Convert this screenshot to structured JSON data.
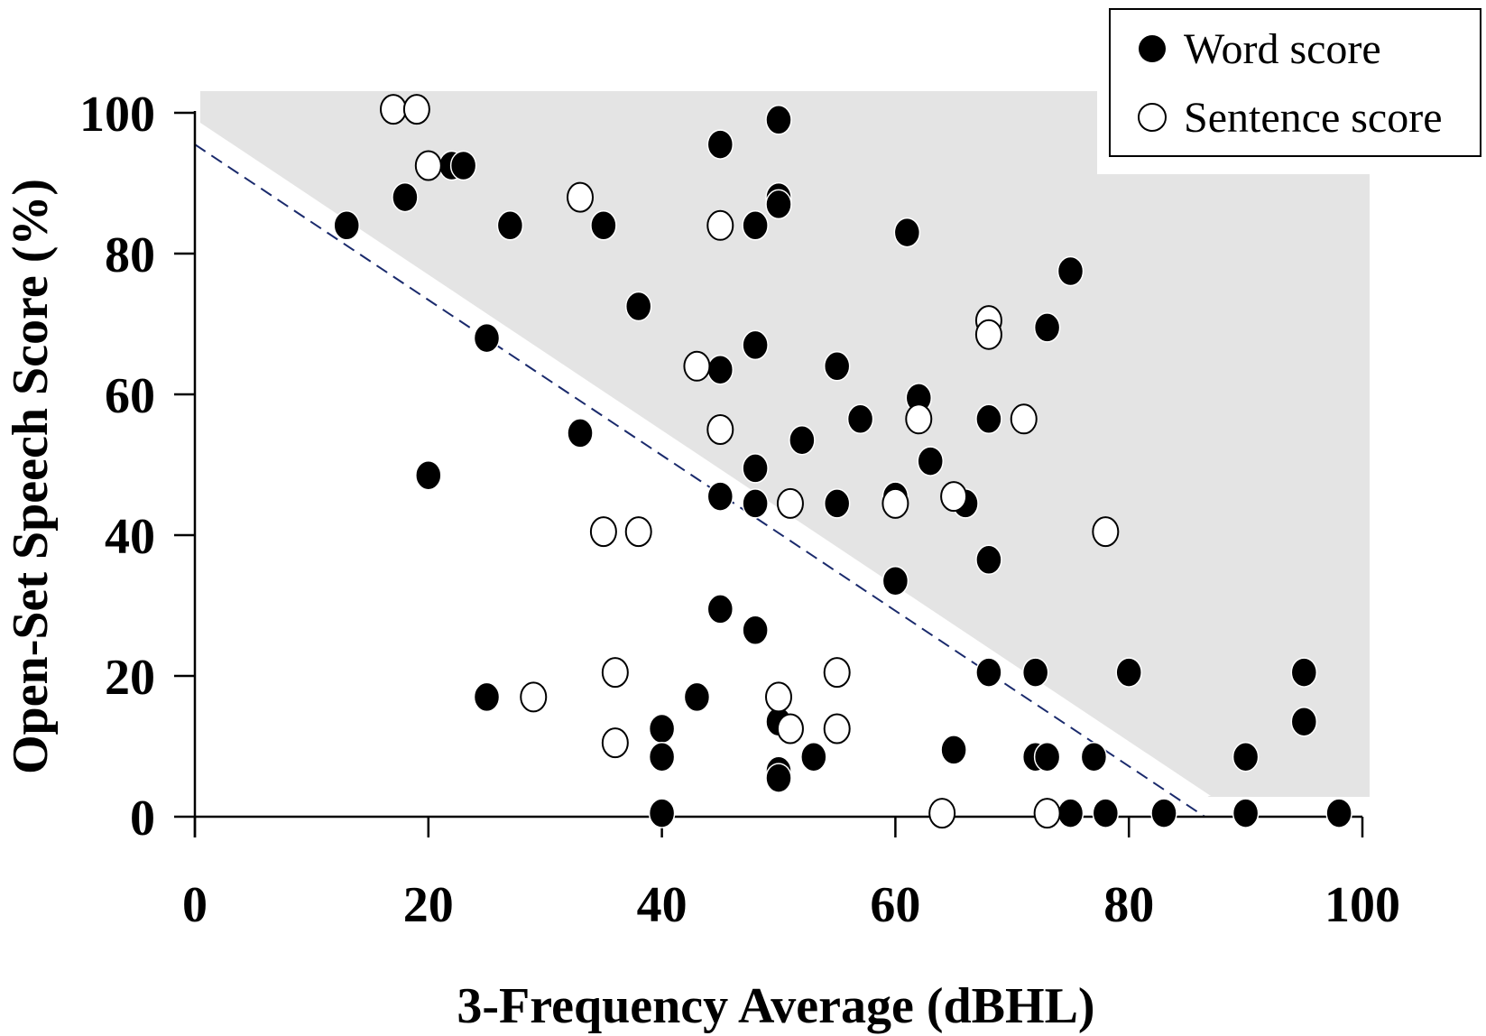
{
  "chart_data": {
    "type": "scatter",
    "title": "",
    "xlabel": "3-Frequency Average (dBHL)",
    "ylabel": "Open-Set Speech Score (%)",
    "xlim": [
      0,
      100
    ],
    "ylim": [
      0,
      100
    ],
    "x_ticks": [
      "0",
      "20",
      "40",
      "60",
      "80",
      "100"
    ],
    "y_ticks": [
      "0",
      "20",
      "40",
      "60",
      "80",
      "100"
    ],
    "grid": false,
    "legend_position": "top-right",
    "shaded_region_color": "#e4e4e4",
    "reference_line": {
      "style": "dashed",
      "color": "#1a2a6c",
      "points": [
        [
          0,
          95.5
        ],
        [
          86.5,
          0
        ]
      ]
    },
    "series": [
      {
        "name": "Word score",
        "marker": "filled-circle",
        "color": "#000000",
        "points": [
          [
            13,
            84
          ],
          [
            18,
            88
          ],
          [
            22,
            92.5
          ],
          [
            23,
            92.5
          ],
          [
            25,
            68
          ],
          [
            25,
            17
          ],
          [
            20,
            48.5
          ],
          [
            27,
            84
          ],
          [
            33,
            54.5
          ],
          [
            35,
            84
          ],
          [
            38,
            72.5
          ],
          [
            40,
            12.5
          ],
          [
            40,
            8.5
          ],
          [
            40,
            0.5
          ],
          [
            43,
            17
          ],
          [
            45,
            95.5
          ],
          [
            45,
            63.5
          ],
          [
            45,
            45.5
          ],
          [
            45,
            29.5
          ],
          [
            48,
            84
          ],
          [
            48,
            67
          ],
          [
            48,
            49.5
          ],
          [
            48,
            44.5
          ],
          [
            48,
            26.5
          ],
          [
            50,
            99
          ],
          [
            50,
            88
          ],
          [
            50,
            87
          ],
          [
            50,
            13.5
          ],
          [
            50,
            6.5
          ],
          [
            50,
            5.5
          ],
          [
            52,
            53.5
          ],
          [
            53,
            8.5
          ],
          [
            55,
            64
          ],
          [
            55,
            44.5
          ],
          [
            57,
            56.5
          ],
          [
            60,
            45.5
          ],
          [
            60,
            33.5
          ],
          [
            61,
            83
          ],
          [
            62,
            59.5
          ],
          [
            63,
            50.5
          ],
          [
            65,
            9.5
          ],
          [
            66,
            44.5
          ],
          [
            68,
            56.5
          ],
          [
            68,
            36.5
          ],
          [
            68,
            20.5
          ],
          [
            72,
            20.5
          ],
          [
            72,
            8.5
          ],
          [
            73,
            69.5
          ],
          [
            73,
            8.5
          ],
          [
            75,
            77.5
          ],
          [
            75,
            0.5
          ],
          [
            77,
            8.5
          ],
          [
            78,
            0.5
          ],
          [
            80,
            20.5
          ],
          [
            83,
            0.5
          ],
          [
            90,
            8.5
          ],
          [
            90,
            0.5
          ],
          [
            95,
            20.5
          ],
          [
            95,
            13.5
          ],
          [
            98,
            0.5
          ]
        ]
      },
      {
        "name": "Sentence score",
        "marker": "open-circle",
        "color": "#000000",
        "points": [
          [
            17,
            100.5
          ],
          [
            19,
            100.5
          ],
          [
            20,
            92.5
          ],
          [
            29,
            17
          ],
          [
            33,
            88
          ],
          [
            35,
            40.5
          ],
          [
            36,
            20.5
          ],
          [
            36,
            10.5
          ],
          [
            38,
            40.5
          ],
          [
            43,
            64
          ],
          [
            45,
            84
          ],
          [
            45,
            55
          ],
          [
            50,
            17
          ],
          [
            51,
            44.5
          ],
          [
            51,
            12.5
          ],
          [
            55,
            20.5
          ],
          [
            55,
            12.5
          ],
          [
            60,
            44.5
          ],
          [
            62,
            56.5
          ],
          [
            64,
            0.5
          ],
          [
            65,
            45.5
          ],
          [
            68,
            70.5
          ],
          [
            68,
            68.5
          ],
          [
            71,
            56.5
          ],
          [
            73,
            0.5
          ],
          [
            78,
            40.5
          ]
        ]
      }
    ]
  }
}
